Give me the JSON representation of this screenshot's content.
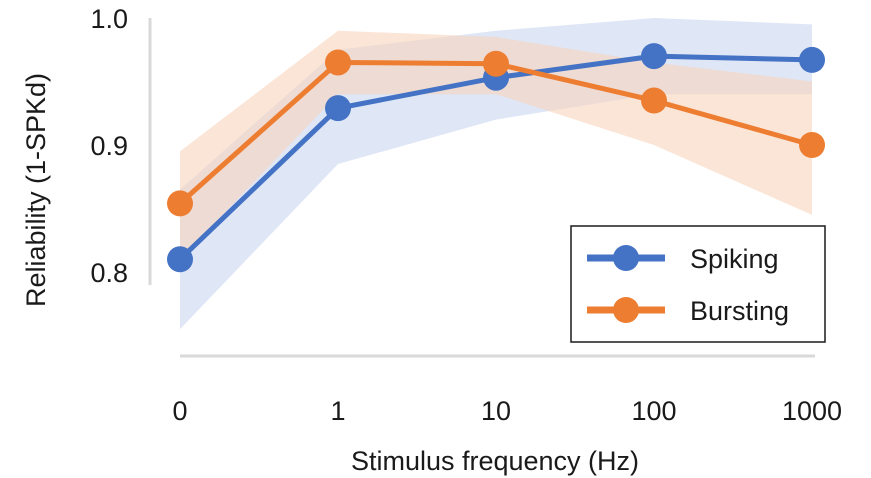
{
  "chart_data": {
    "type": "line",
    "categories": [
      "0",
      "1",
      "10",
      "100",
      "1000"
    ],
    "xlabel": "Stimulus frequency (Hz)",
    "ylabel": "Reliability (1-SPKd)",
    "ylim": [
      0.8,
      1.0
    ],
    "yticks": [
      "0.8",
      "0.9",
      "1.0"
    ],
    "grid": false,
    "legend_position": "bottom-right",
    "series": [
      {
        "name": "Spiking",
        "color": "#4472C4",
        "band_color": "#C9D6F0",
        "values": [
          0.81,
          0.929,
          0.953,
          0.97,
          0.967
        ],
        "lower": [
          0.755,
          0.885,
          0.92,
          0.94,
          0.94
        ],
        "upper": [
          0.865,
          0.975,
          0.99,
          1.0,
          0.995
        ]
      },
      {
        "name": "Bursting",
        "color": "#ED7D31",
        "band_color": "#F8D3BC",
        "values": [
          0.854,
          0.965,
          0.964,
          0.935,
          0.9
        ],
        "lower": [
          0.81,
          0.94,
          0.94,
          0.9,
          0.845
        ],
        "upper": [
          0.895,
          0.99,
          0.985,
          0.965,
          0.95
        ]
      }
    ]
  }
}
